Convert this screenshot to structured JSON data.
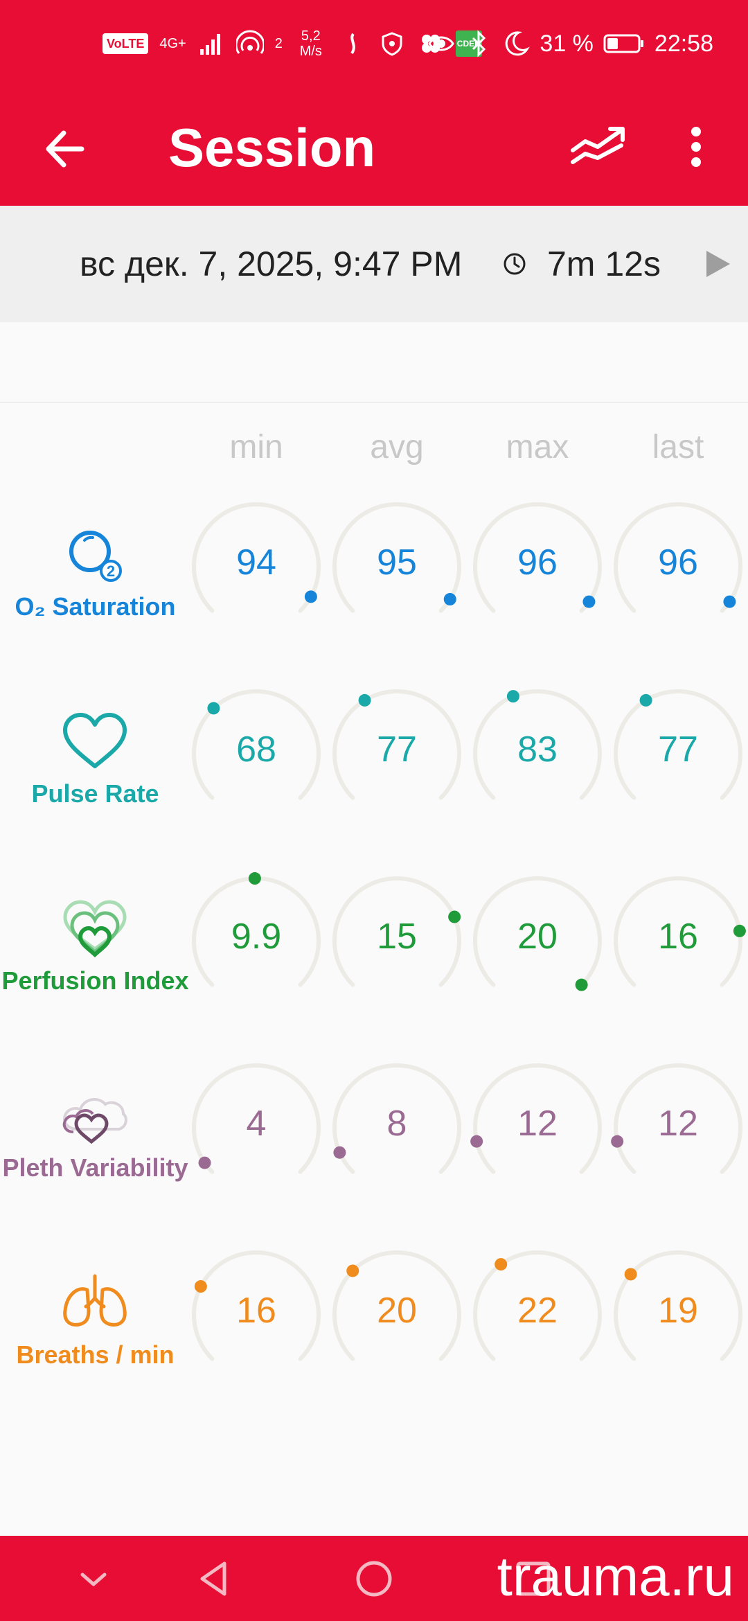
{
  "status_bar": {
    "volte": "VoLTE",
    "network": "4G+",
    "hotspot_count": "2",
    "speed_value": "5,2",
    "speed_unit": "M/s",
    "battery": "31 %",
    "time": "22:58",
    "cdek_badge": "CDEK"
  },
  "appbar": {
    "title": "Session"
  },
  "session": {
    "datetime": "вс дек. 7, 2025, 9:47 PM",
    "duration": "7m 12s"
  },
  "columns": [
    "min",
    "avg",
    "max",
    "last"
  ],
  "metrics": [
    {
      "label": "O₂ Saturation",
      "color": "#1584d9",
      "values": [
        "94",
        "95",
        "96",
        "96"
      ],
      "levels": [
        0.94,
        0.95,
        0.96,
        0.96
      ]
    },
    {
      "label": "Pulse Rate",
      "color": "#1aa8a8",
      "values": [
        "68",
        "77",
        "83",
        "77"
      ],
      "levels": [
        0.34,
        0.385,
        0.415,
        0.385
      ]
    },
    {
      "label": "Perfusion Index",
      "color": "#1f9b3a",
      "values": [
        "9.9",
        "15",
        "20",
        "16"
      ],
      "levels": [
        0.495,
        0.75,
        1.0,
        0.8
      ]
    },
    {
      "label": "Pleth Variability",
      "color": "#9b6a93",
      "values": [
        "4",
        "8",
        "12",
        "12"
      ],
      "levels": [
        0.04,
        0.08,
        0.12,
        0.12
      ]
    },
    {
      "label": "Breaths / min",
      "color": "#f08b1d",
      "values": [
        "16",
        "20",
        "22",
        "19"
      ],
      "levels": [
        0.267,
        0.333,
        0.367,
        0.317
      ]
    }
  ],
  "colors": {
    "brand": "#e70d34",
    "gauge_track": "#ecebe6"
  },
  "watermark": "trauma.ru"
}
